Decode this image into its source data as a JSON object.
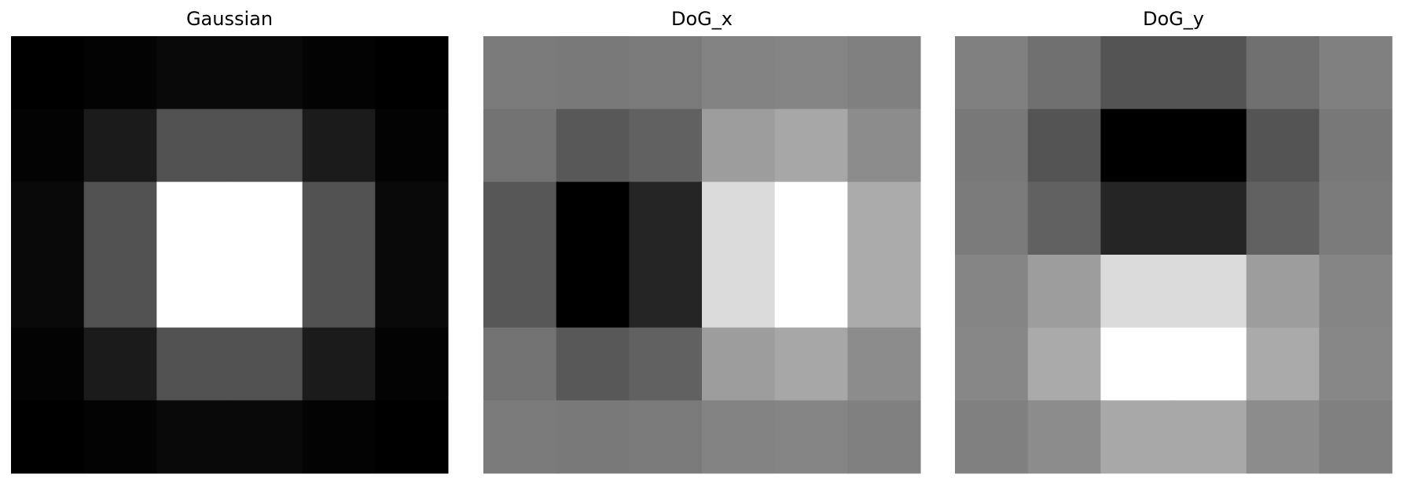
{
  "chart_data": [
    {
      "type": "heatmap",
      "title": "Gaussian",
      "colormap": "gray",
      "rows": [
        [
          0,
          3,
          9,
          9,
          3,
          0
        ],
        [
          3,
          27,
          82,
          82,
          27,
          3
        ],
        [
          9,
          82,
          255,
          255,
          82,
          9
        ],
        [
          9,
          82,
          255,
          255,
          82,
          9
        ],
        [
          3,
          27,
          82,
          82,
          27,
          3
        ],
        [
          0,
          3,
          9,
          9,
          3,
          0
        ]
      ]
    },
    {
      "type": "heatmap",
      "title": "DoG_x",
      "colormap": "gray",
      "rows": [
        [
          123,
          121,
          123,
          131,
          133,
          128
        ],
        [
          115,
          88,
          97,
          157,
          167,
          140
        ],
        [
          87,
          0,
          37,
          219,
          255,
          171
        ],
        [
          87,
          0,
          37,
          219,
          255,
          171
        ],
        [
          115,
          88,
          97,
          157,
          167,
          140
        ],
        [
          123,
          121,
          123,
          131,
          133,
          128
        ]
      ]
    },
    {
      "type": "heatmap",
      "title": "DoG_y",
      "colormap": "gray",
      "rows": [
        [
          128,
          112,
          84,
          84,
          112,
          128
        ],
        [
          120,
          84,
          0,
          0,
          84,
          120
        ],
        [
          123,
          97,
          37,
          37,
          97,
          123
        ],
        [
          133,
          157,
          219,
          219,
          157,
          133
        ],
        [
          135,
          170,
          255,
          255,
          170,
          135
        ],
        [
          128,
          140,
          168,
          168,
          140,
          128
        ]
      ]
    }
  ]
}
